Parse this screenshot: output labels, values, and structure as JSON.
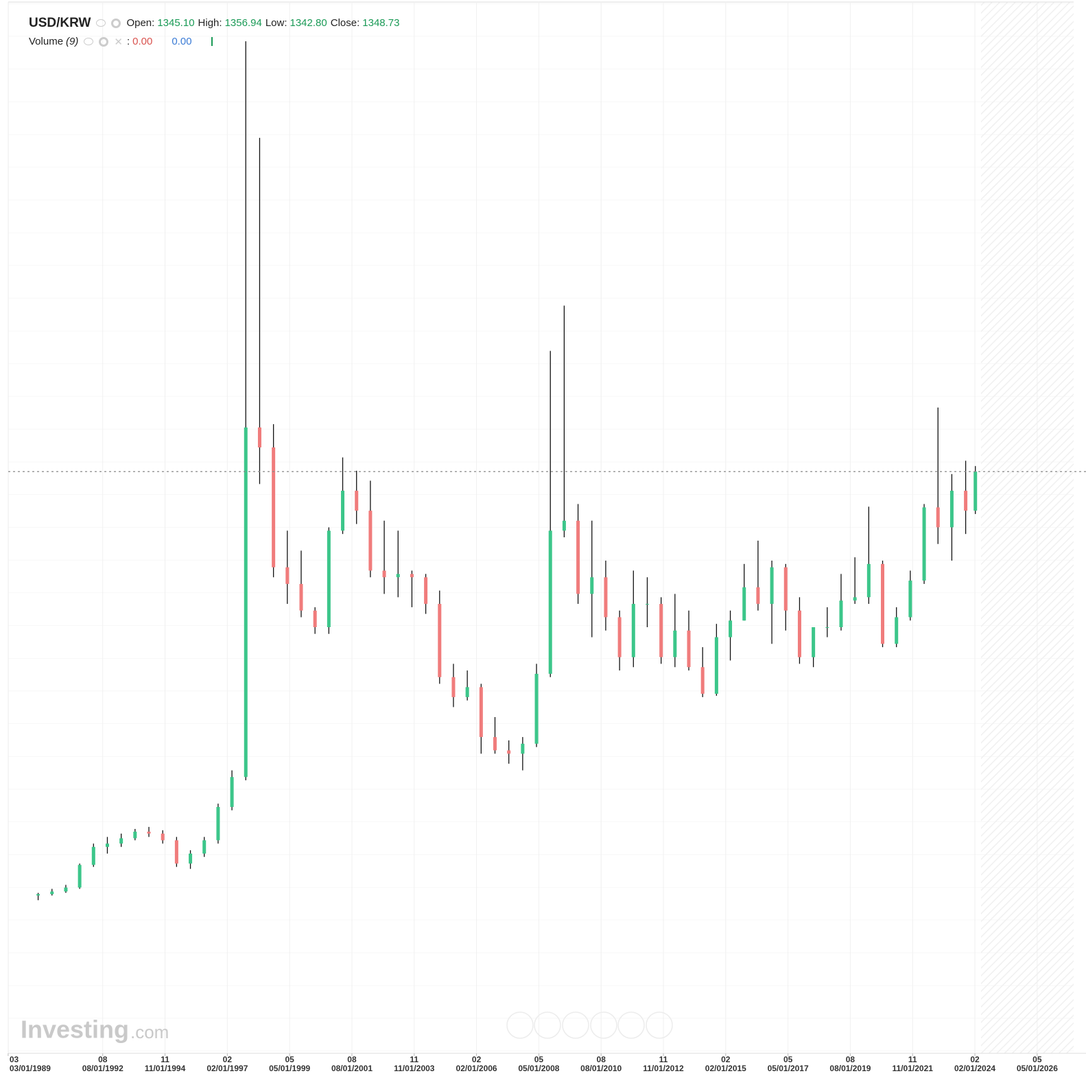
{
  "header": {
    "symbol": "USD/KRW",
    "open_label": "Open:",
    "open": "1345.10",
    "high_label": "High:",
    "high": "1356.94",
    "low_label": "Low:",
    "low": "1342.80",
    "close_label": "Close:",
    "close": "1348.73",
    "volume_label": "Volume",
    "volume_period": "(9)",
    "volume_sep": ":",
    "volume_down": "0.00",
    "volume_up": "0.00"
  },
  "logo": {
    "main": "Investing",
    "suffix": ".com"
  },
  "chart_data": {
    "type": "candlestick",
    "x": [
      1990.25,
      1990.75,
      1991.25,
      1991.75,
      1992.25,
      1992.75,
      1993.25,
      1993.75,
      1994.25,
      1994.75,
      1995.25,
      1995.75,
      1996.25,
      1996.75,
      1997.25,
      1997.75,
      1998.25,
      1998.75,
      1999.25,
      1999.75,
      2000.25,
      2000.75,
      2001.25,
      2001.75,
      2002.25,
      2002.75,
      2003.25,
      2003.75,
      2004.25,
      2004.75,
      2005.25,
      2005.75,
      2006.25,
      2006.75,
      2007.25,
      2007.75,
      2008.25,
      2008.75,
      2009.25,
      2009.75,
      2010.25,
      2010.75,
      2011.25,
      2011.75,
      2012.25,
      2012.75,
      2013.25,
      2013.75,
      2014.25,
      2014.75,
      2015.25,
      2015.75,
      2016.25,
      2016.75,
      2017.25,
      2017.75,
      2018.25,
      2018.75,
      2019.25,
      2019.75,
      2020.25,
      2020.75,
      2021.25,
      2021.75,
      2022.25,
      2022.75,
      2023.25,
      2023.75,
      2024.1
    ],
    "open": [
      712,
      714,
      718,
      724,
      758,
      785,
      790,
      798,
      808,
      805,
      795,
      760,
      775,
      795,
      845,
      890,
      1415,
      1385,
      1205,
      1180,
      1140,
      1115,
      1260,
      1320,
      1290,
      1200,
      1190,
      1195,
      1190,
      1150,
      1040,
      1010,
      1025,
      950,
      930,
      925,
      940,
      1045,
      1260,
      1275,
      1165,
      1190,
      1130,
      1070,
      1150,
      1150,
      1070,
      1110,
      1055,
      1015,
      1100,
      1125,
      1175,
      1150,
      1205,
      1140,
      1070,
      1115,
      1115,
      1155,
      1160,
      1210,
      1090,
      1130,
      1185,
      1295,
      1265,
      1320,
      1290
    ],
    "high": [
      716,
      722,
      728,
      760,
      790,
      800,
      805,
      812,
      815,
      810,
      800,
      780,
      800,
      850,
      900,
      1995,
      1850,
      1420,
      1260,
      1230,
      1145,
      1265,
      1370,
      1350,
      1335,
      1275,
      1260,
      1200,
      1195,
      1170,
      1060,
      1050,
      1030,
      980,
      945,
      950,
      1060,
      1530,
      1598,
      1300,
      1275,
      1215,
      1140,
      1200,
      1190,
      1160,
      1165,
      1140,
      1085,
      1120,
      1140,
      1210,
      1245,
      1215,
      1210,
      1160,
      1110,
      1145,
      1195,
      1220,
      1296,
      1215,
      1145,
      1200,
      1300,
      1445,
      1345,
      1365,
      1357
    ],
    "low": [
      705,
      712,
      716,
      722,
      755,
      775,
      785,
      795,
      800,
      790,
      755,
      752,
      770,
      790,
      840,
      885,
      1330,
      1190,
      1150,
      1130,
      1105,
      1105,
      1255,
      1270,
      1190,
      1165,
      1160,
      1145,
      1135,
      1030,
      995,
      1005,
      925,
      925,
      910,
      900,
      935,
      1040,
      1250,
      1150,
      1100,
      1110,
      1050,
      1055,
      1115,
      1060,
      1055,
      1050,
      1010,
      1012,
      1065,
      1125,
      1140,
      1090,
      1110,
      1060,
      1055,
      1100,
      1110,
      1150,
      1150,
      1085,
      1085,
      1125,
      1180,
      1240,
      1215,
      1255,
      1285
    ],
    "close": [
      714,
      718,
      724,
      758,
      785,
      790,
      798,
      808,
      805,
      795,
      760,
      775,
      795,
      845,
      890,
      1415,
      1385,
      1205,
      1180,
      1140,
      1115,
      1260,
      1320,
      1290,
      1200,
      1190,
      1195,
      1190,
      1150,
      1040,
      1010,
      1025,
      950,
      930,
      925,
      940,
      1045,
      1260,
      1275,
      1165,
      1190,
      1130,
      1070,
      1150,
      1150,
      1070,
      1110,
      1055,
      1015,
      1100,
      1125,
      1175,
      1150,
      1205,
      1140,
      1070,
      1115,
      1115,
      1155,
      1160,
      1210,
      1090,
      1130,
      1185,
      1295,
      1265,
      1320,
      1290,
      1348.73
    ],
    "last_price": 1348.73,
    "up_color": "#3cc68a",
    "down_color": "#f07c7c",
    "wick_color": "#111111",
    "xlim": [
      1989.17,
      2027.65
    ],
    "ylim": [
      475,
      2057
    ],
    "xticks": [
      {
        "value": 1989.167,
        "label": "03/01/1989"
      },
      {
        "value": 1992.583,
        "label": "08/01/1992"
      },
      {
        "value": 1994.833,
        "label": "11/01/1994"
      },
      {
        "value": 1997.083,
        "label": "02/01/1997"
      },
      {
        "value": 1999.333,
        "label": "05/01/1999"
      },
      {
        "value": 2001.583,
        "label": "08/01/2001"
      },
      {
        "value": 2003.833,
        "label": "11/01/2003"
      },
      {
        "value": 2006.083,
        "label": "02/01/2006"
      },
      {
        "value": 2008.333,
        "label": "05/01/2008"
      },
      {
        "value": 2010.583,
        "label": "08/01/2010"
      },
      {
        "value": 2012.833,
        "label": "11/01/2012"
      },
      {
        "value": 2015.083,
        "label": "02/01/2015"
      },
      {
        "value": 2017.333,
        "label": "05/01/2017"
      },
      {
        "value": 2019.583,
        "label": "08/01/2019"
      },
      {
        "value": 2021.833,
        "label": "11/01/2021"
      },
      {
        "value": 2024.083,
        "label": "02/01/2024"
      },
      {
        "value": 2026.333,
        "label": "05/01/2026"
      }
    ],
    "xtick_months": [
      "03",
      "08",
      "11",
      "02",
      "05",
      "08",
      "11",
      "02",
      "05",
      "08",
      "11",
      "02",
      "05",
      "08",
      "11",
      "02",
      "05"
    ],
    "grid": true
  }
}
